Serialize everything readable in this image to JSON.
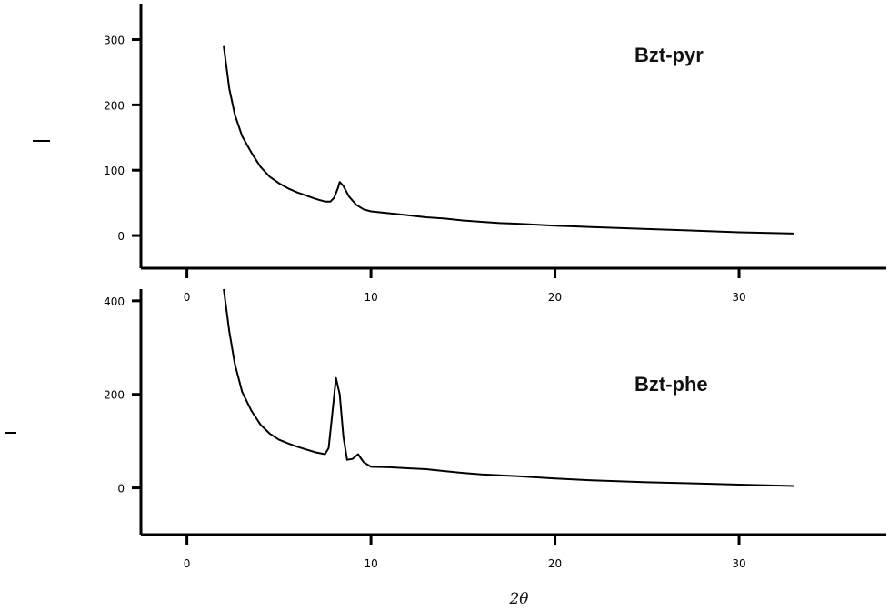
{
  "chart_data": [
    {
      "type": "line",
      "label": "Bzt-pyr",
      "xlabel": "",
      "ylabel": "",
      "xlim": [
        -2.5,
        38
      ],
      "ylim": [
        -50,
        355
      ],
      "xticks": [
        0,
        10,
        20,
        30
      ],
      "yticks": [
        0,
        100,
        200,
        300
      ],
      "series": [
        {
          "x": [
            2.0,
            2.3,
            2.6,
            3.0,
            3.5,
            4.0,
            4.5,
            5.0,
            5.5,
            6.0,
            6.5,
            7.0,
            7.5,
            7.8,
            8.0,
            8.2,
            8.3,
            8.5,
            8.8,
            9.2,
            9.6,
            10.0,
            11,
            12,
            13,
            14,
            15,
            16,
            17,
            18,
            20,
            22,
            25,
            28,
            30,
            33
          ],
          "y": [
            290,
            225,
            185,
            152,
            127,
            105,
            90,
            80,
            72,
            66,
            61,
            56,
            52,
            52,
            58,
            72,
            82,
            76,
            60,
            47,
            40,
            37,
            34,
            31,
            28,
            26,
            23,
            21,
            19,
            18,
            15,
            13,
            10,
            7,
            5,
            3
          ]
        }
      ]
    },
    {
      "type": "line",
      "label": "Bzt-phe",
      "xlabel": "2θ",
      "ylabel": "",
      "xlim": [
        -2.5,
        38
      ],
      "ylim": [
        -100,
        425
      ],
      "xticks": [
        0,
        10,
        20,
        30
      ],
      "yticks": [
        0,
        200,
        400
      ],
      "series": [
        {
          "x": [
            2.0,
            2.3,
            2.6,
            3.0,
            3.5,
            4.0,
            4.5,
            5.0,
            5.5,
            6.0,
            6.5,
            7.0,
            7.5,
            7.7,
            7.9,
            8.1,
            8.3,
            8.5,
            8.7,
            9.0,
            9.3,
            9.6,
            10.0,
            11,
            12,
            13,
            14,
            15,
            16,
            17,
            18,
            20,
            22,
            25,
            28,
            30,
            33
          ],
          "y": [
            425,
            335,
            265,
            205,
            165,
            135,
            116,
            103,
            95,
            88,
            82,
            76,
            72,
            85,
            160,
            235,
            200,
            110,
            60,
            62,
            72,
            55,
            45,
            44,
            42,
            40,
            36,
            32,
            29,
            27,
            25,
            20,
            16,
            12,
            9,
            7,
            4
          ]
        }
      ]
    }
  ]
}
